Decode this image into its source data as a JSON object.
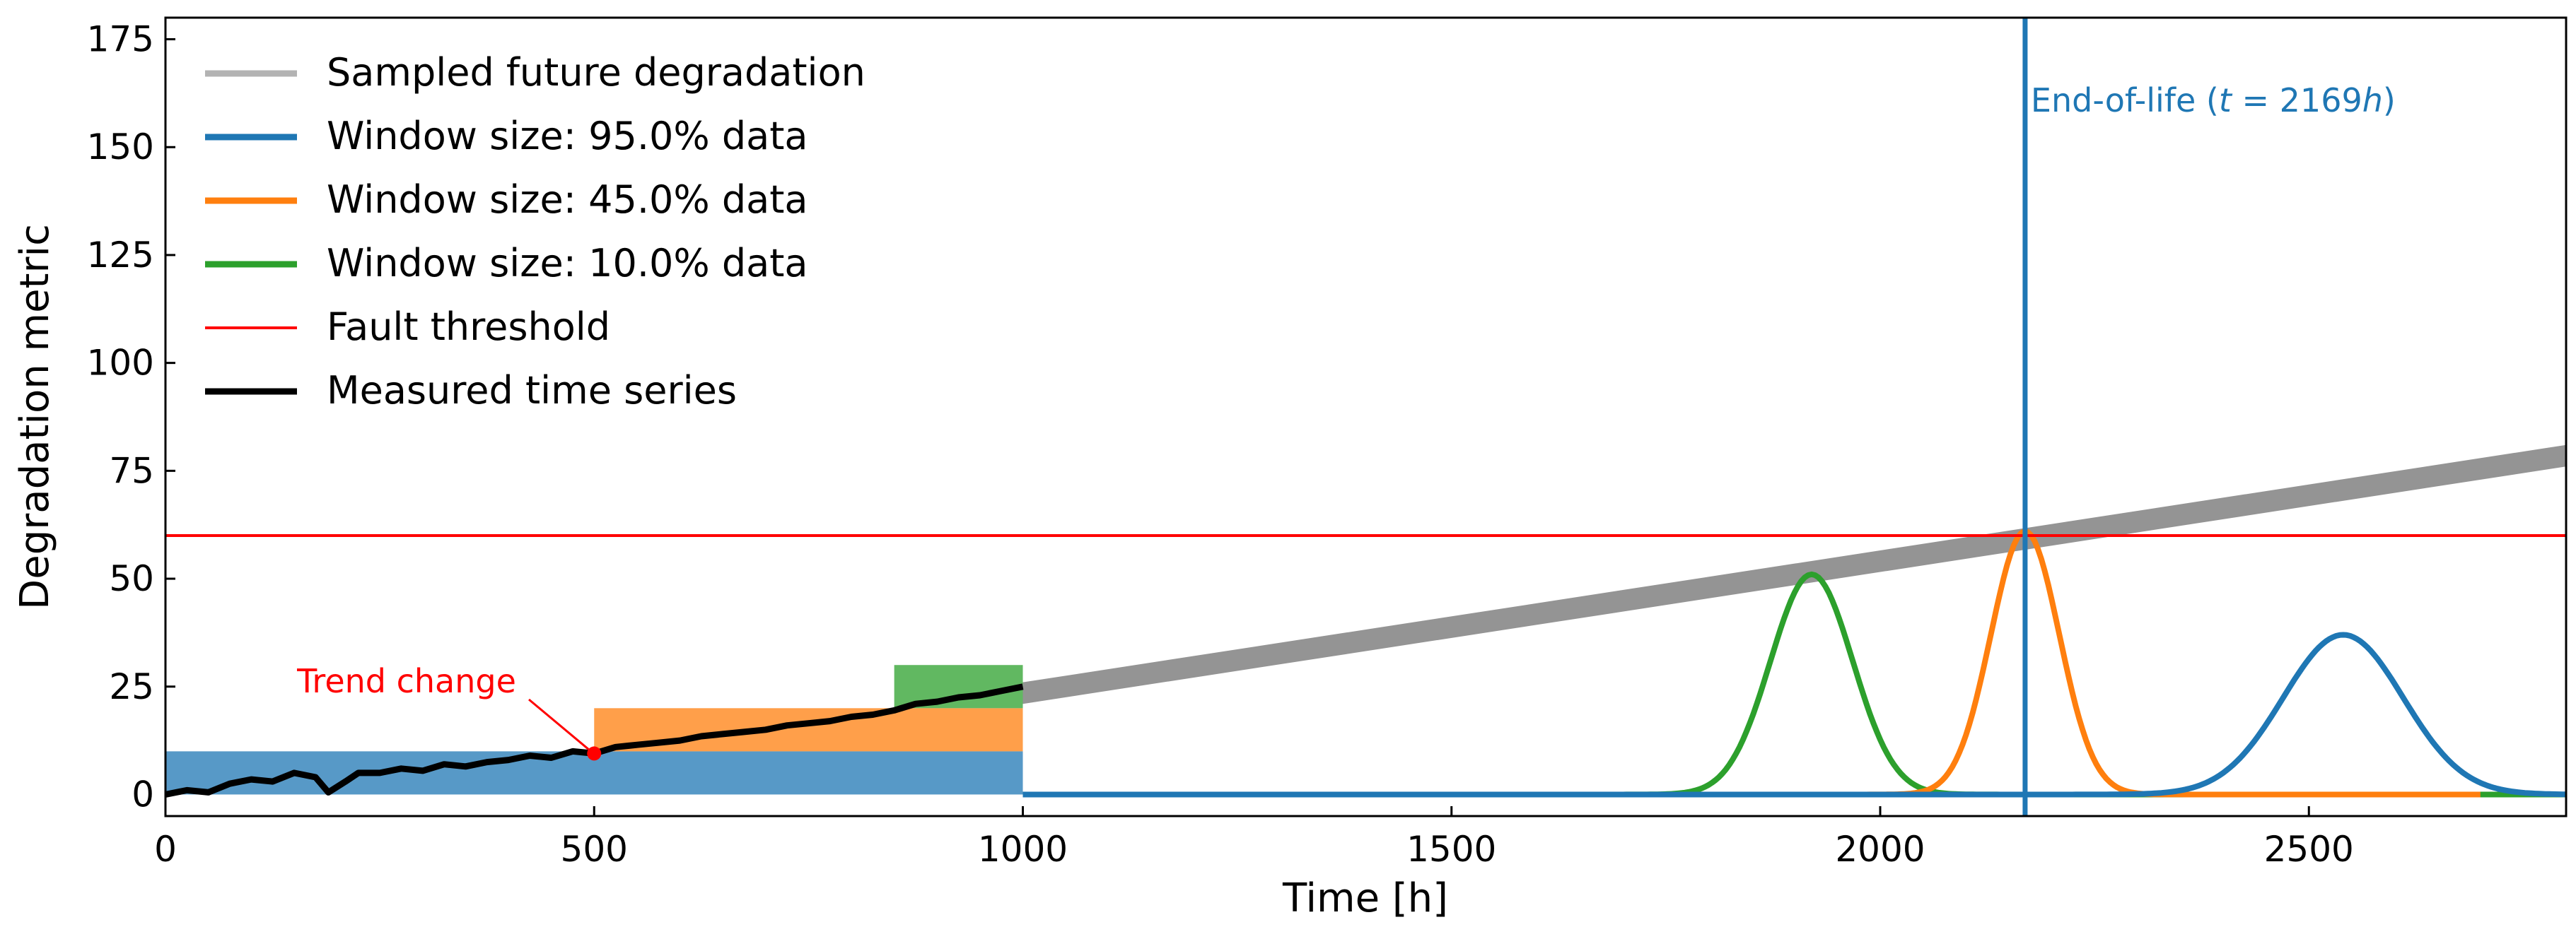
{
  "chart_data": {
    "type": "line",
    "title": "",
    "xlabel": "Time [h]",
    "ylabel": "Degradation metric",
    "xlim": [
      0,
      2800
    ],
    "ylim": [
      -5,
      180
    ],
    "xticks": [
      0,
      500,
      1000,
      1500,
      2000,
      2500
    ],
    "yticks": [
      0,
      25,
      50,
      75,
      100,
      125,
      150,
      175
    ],
    "grid": false,
    "legend_position": "top-left",
    "colors": {
      "sampled": "#b3b3b3",
      "sampled_band": "#888888",
      "w95": "#1f77b4",
      "w45": "#ff7f0e",
      "w10": "#2ca02c",
      "threshold": "#ff0000",
      "measured": "#000000",
      "annotation": "#ff0000",
      "eol": "#1f77b4"
    },
    "legend": [
      {
        "key": "sampled",
        "label": "Sampled future degradation"
      },
      {
        "key": "w95",
        "label": "Window size: 95.0% data"
      },
      {
        "key": "w45",
        "label": "Window size: 45.0% data"
      },
      {
        "key": "w10",
        "label": "Window size: 10.0% data"
      },
      {
        "key": "threshold",
        "label": "Fault threshold"
      },
      {
        "key": "measured",
        "label": "Measured time series"
      }
    ],
    "fault_threshold": 60,
    "end_of_life": {
      "t": 2169,
      "label_prefix": "End-of-life (",
      "label_t": "t",
      "label_eq": " = 2169",
      "label_h": "h",
      "label_suffix": ")"
    },
    "trend_change": {
      "label": "Trend change",
      "x": 500,
      "y": 9.5
    },
    "windows": [
      {
        "key": "w95",
        "x0": 0,
        "x1": 1000,
        "y0": 0,
        "y1": 10
      },
      {
        "key": "w45",
        "x0": 500,
        "x1": 1000,
        "y0": 10,
        "y1": 20
      },
      {
        "key": "w10",
        "x0": 850,
        "x1": 1000,
        "y0": 20,
        "y1": 30
      }
    ],
    "measured_series": {
      "x": [
        0,
        25,
        50,
        75,
        100,
        125,
        150,
        175,
        190,
        210,
        225,
        250,
        275,
        300,
        325,
        350,
        375,
        400,
        425,
        450,
        475,
        500,
        525,
        550,
        575,
        600,
        625,
        650,
        675,
        700,
        725,
        750,
        775,
        800,
        825,
        850,
        875,
        900,
        925,
        950,
        975,
        1000
      ],
      "y": [
        0,
        1,
        0.5,
        2.5,
        3.5,
        3,
        5,
        4,
        0.5,
        3,
        5,
        5,
        6,
        5.5,
        7,
        6.5,
        7.5,
        8,
        9,
        8.5,
        10,
        9.5,
        11,
        11.5,
        12,
        12.5,
        13.5,
        14,
        14.5,
        15,
        16,
        16.5,
        17,
        18,
        18.5,
        19.5,
        21,
        21.5,
        22.5,
        23,
        24,
        25
      ]
    },
    "sampled_future": {
      "x": [
        1000,
        2800
      ],
      "y": [
        23.5,
        78.5
      ],
      "band_width": 2.5
    },
    "pdf_curves": [
      {
        "key": "w10",
        "center": 1920,
        "sigma": 48,
        "peak": 51,
        "baseline_x": [
          1000,
          2800
        ]
      },
      {
        "key": "w45",
        "center": 2169,
        "sigma": 40,
        "peak": 61,
        "baseline_x": [
          1000,
          2700
        ]
      },
      {
        "key": "w95",
        "center": 2540,
        "sigma": 70,
        "peak": 37,
        "baseline_x": [
          1000,
          2800
        ]
      }
    ]
  }
}
